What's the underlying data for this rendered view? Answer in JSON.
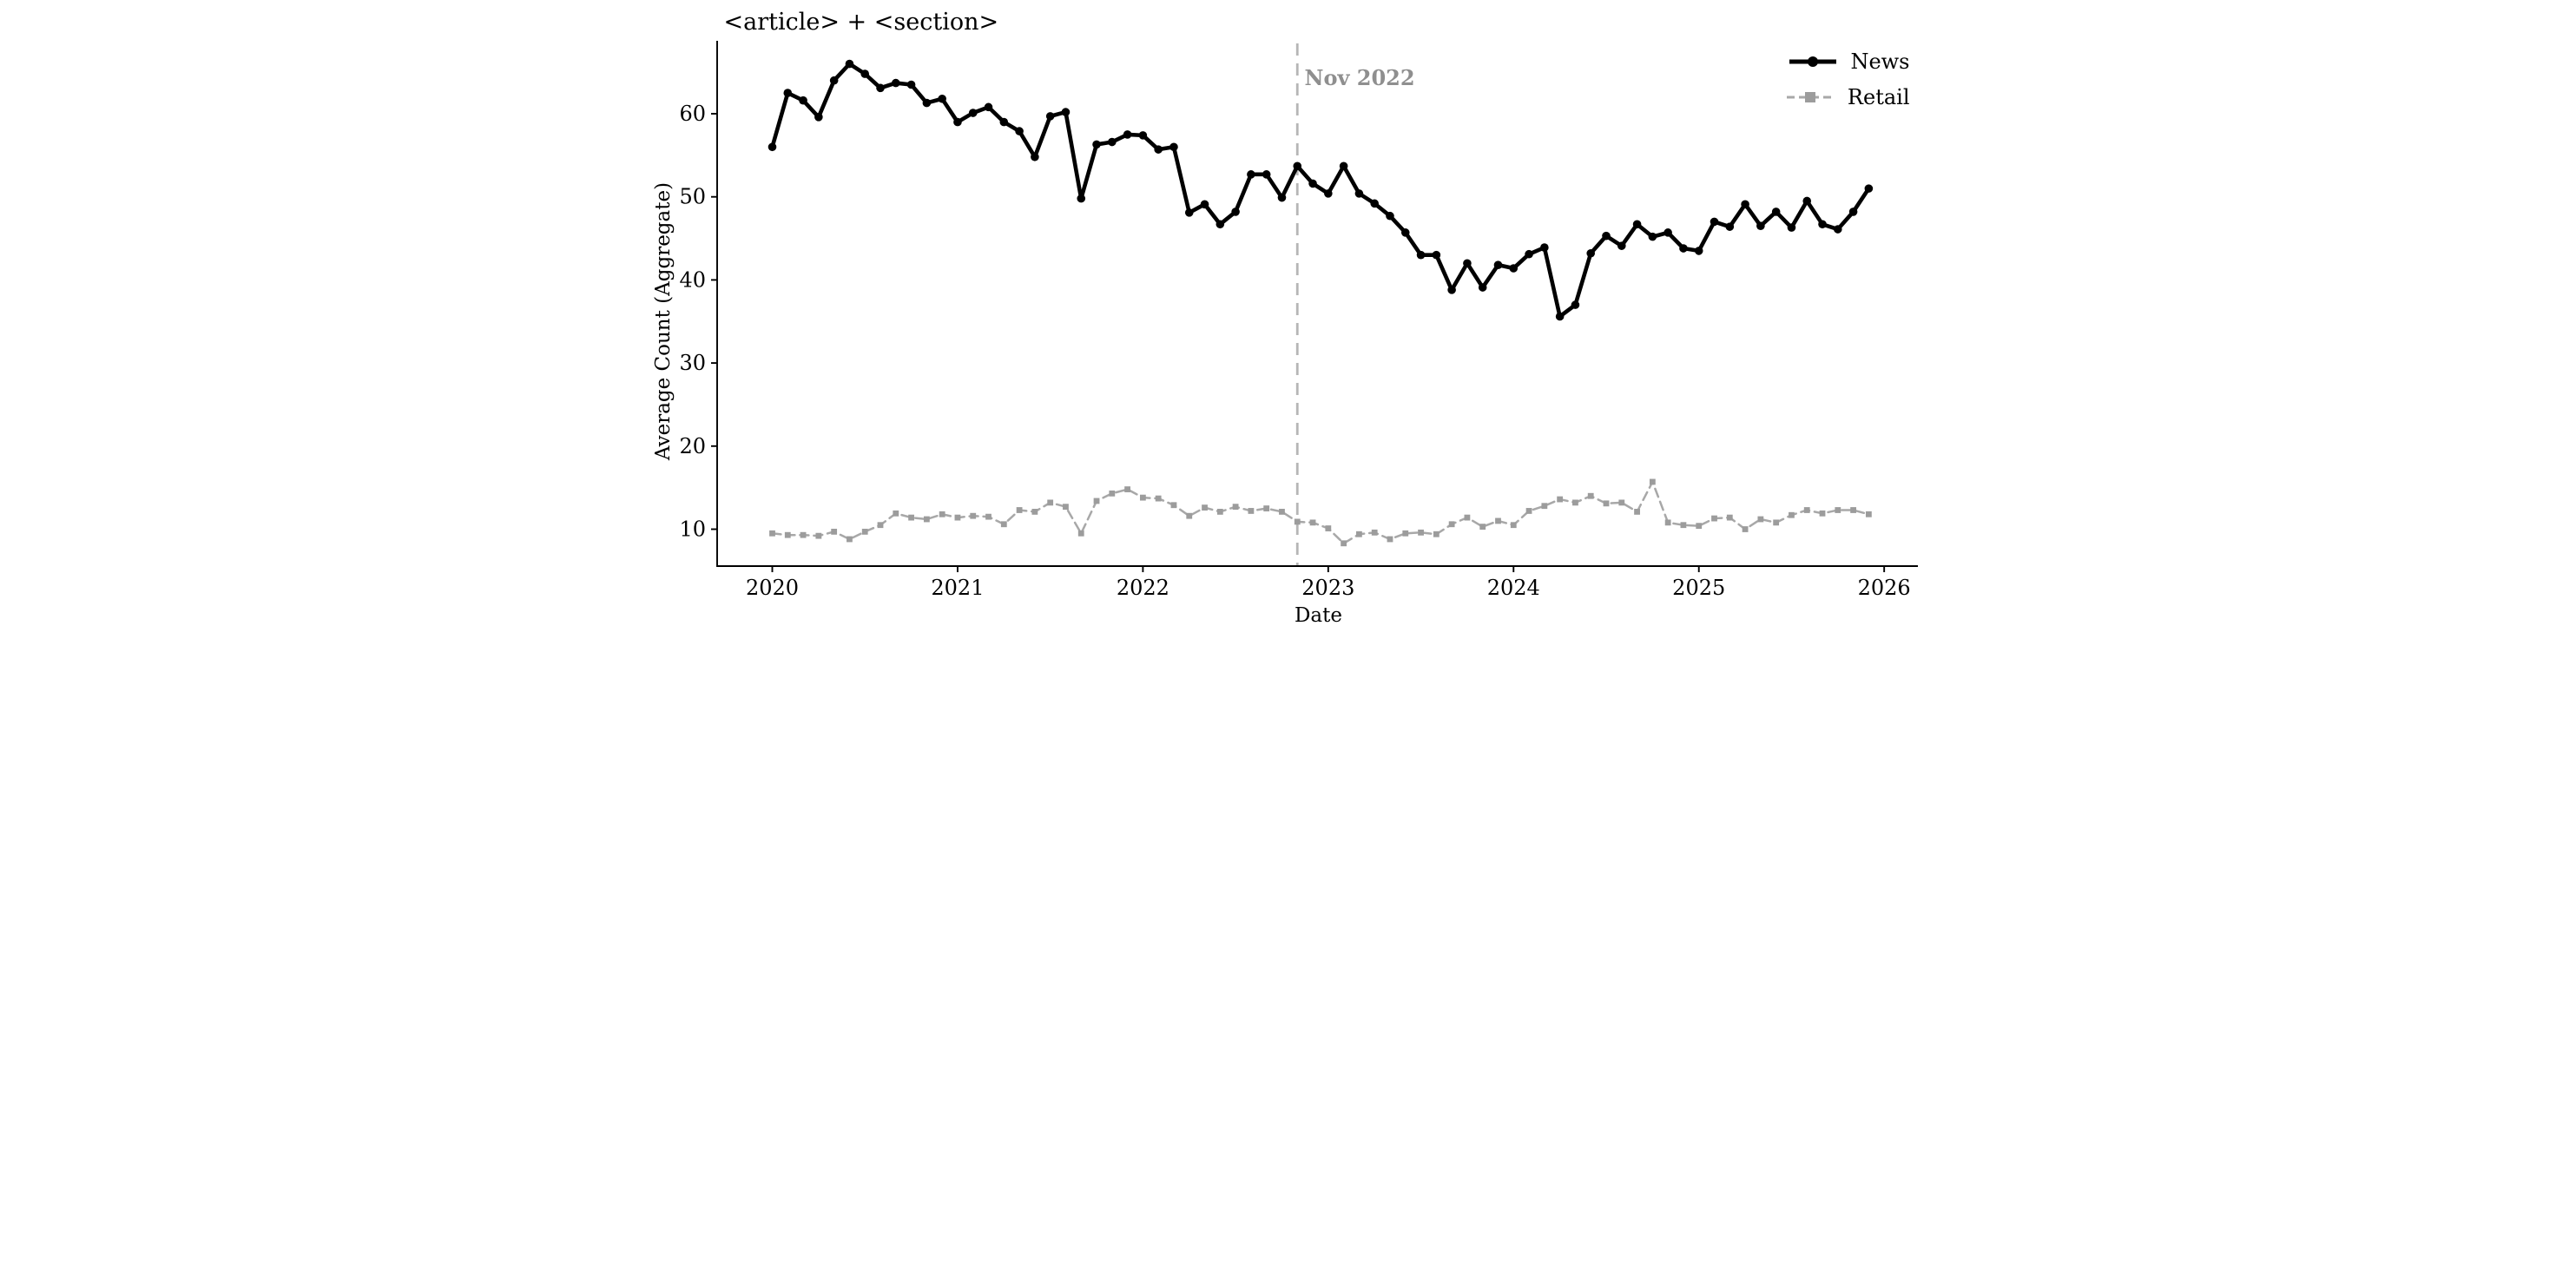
{
  "chart_data": {
    "type": "line",
    "title": "<article> + <section>",
    "xlabel": "Date",
    "ylabel": "Average Count (Aggregate)",
    "x_tick_labels": [
      "2020",
      "2021",
      "2022",
      "2023",
      "2024",
      "2025",
      "2026"
    ],
    "y_tick_labels": [
      "10",
      "20",
      "30",
      "40",
      "50",
      "60"
    ],
    "y_ticks": [
      10,
      20,
      30,
      40,
      50,
      60
    ],
    "ylim": [
      5.5,
      68.7
    ],
    "x_months": {
      "start": "2020-01",
      "end": "2025-12",
      "count": 72,
      "cadence": "monthly"
    },
    "grid": "off",
    "legend_position": "upper right",
    "annotation": {
      "label": "Nov 2022",
      "month_index": 34,
      "line_color": "#b6b6b6",
      "text_color": "#8f8f8f"
    },
    "series": [
      {
        "name": "News",
        "color": "#000000",
        "style": "solid",
        "marker": "circle",
        "values": [
          56.0,
          62.5,
          61.6,
          59.6,
          64.0,
          66.0,
          64.8,
          63.1,
          63.7,
          63.5,
          61.3,
          61.8,
          59.0,
          60.1,
          60.8,
          59.0,
          57.9,
          54.8,
          59.7,
          60.2,
          49.8,
          56.3,
          56.6,
          57.5,
          57.4,
          55.7,
          56.0,
          48.1,
          49.1,
          46.7,
          48.2,
          52.7,
          52.7,
          49.9,
          53.7,
          51.6,
          50.4,
          53.7,
          50.4,
          49.2,
          47.7,
          45.7,
          43.0,
          43.0,
          38.8,
          42.0,
          39.1,
          41.8,
          41.4,
          43.1,
          43.9,
          35.6,
          37.0,
          43.2,
          45.3,
          44.1,
          46.7,
          45.2,
          45.7,
          43.8,
          43.5,
          47.0,
          46.4,
          49.1,
          46.5,
          48.2,
          46.3,
          49.5,
          46.7,
          46.1,
          48.2,
          51.0
        ]
      },
      {
        "name": "Retail",
        "color": "#a8a8a8",
        "style": "dashed",
        "marker": "square",
        "values": [
          9.5,
          9.3,
          9.3,
          9.2,
          9.7,
          8.8,
          9.7,
          10.5,
          11.9,
          11.4,
          11.2,
          11.8,
          11.4,
          11.6,
          11.5,
          10.6,
          12.3,
          12.1,
          13.2,
          12.7,
          9.5,
          13.4,
          14.3,
          14.8,
          13.8,
          13.7,
          12.9,
          11.6,
          12.6,
          12.1,
          12.7,
          12.2,
          12.5,
          12.1,
          10.9,
          10.8,
          10.1,
          8.3,
          9.4,
          9.6,
          8.8,
          9.5,
          9.6,
          9.4,
          10.6,
          11.4,
          10.3,
          11.0,
          10.5,
          12.2,
          12.8,
          13.6,
          13.2,
          14.0,
          13.1,
          13.2,
          12.1,
          15.7,
          10.8,
          10.5,
          10.4,
          11.3,
          11.4,
          10.0,
          11.2,
          10.8,
          11.7,
          12.3,
          11.9,
          12.3,
          12.3,
          11.8
        ]
      }
    ]
  }
}
